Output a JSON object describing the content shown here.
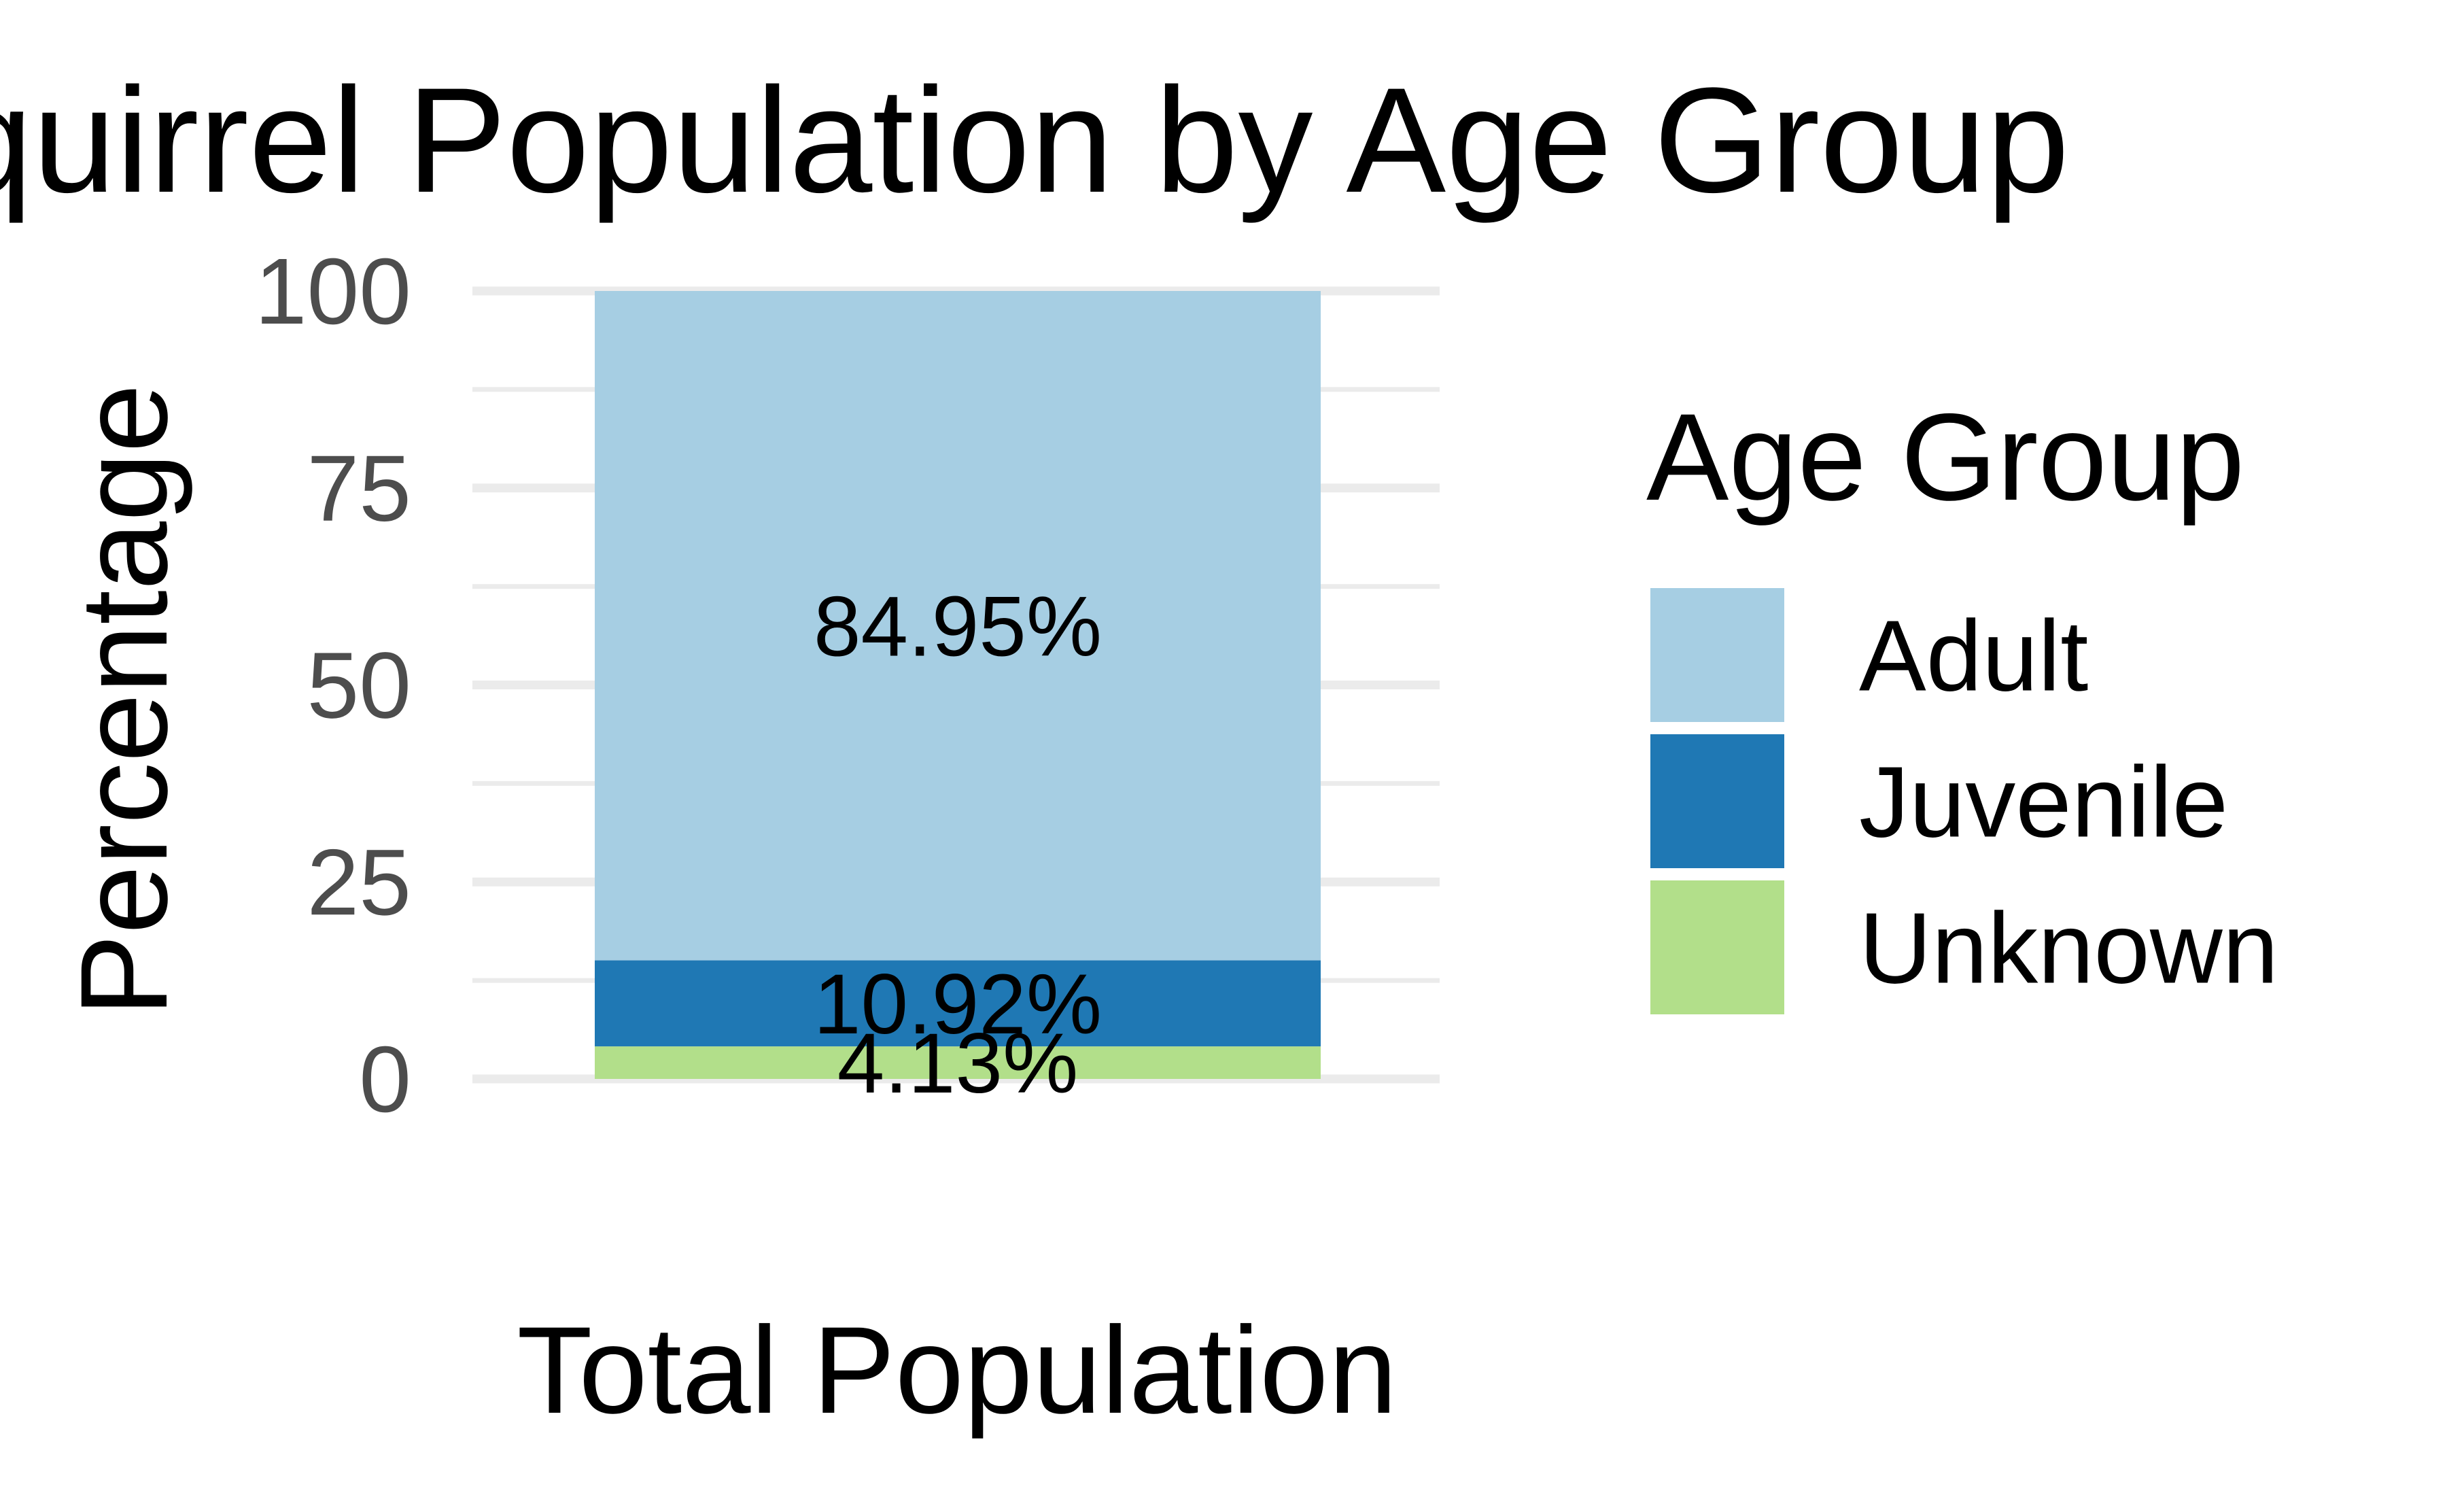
{
  "chart_data": {
    "type": "bar",
    "stacked": true,
    "title": "Park Squirrel Population by Age Group",
    "xlabel": "",
    "ylabel": "Percentage",
    "categories": [
      "Total Population"
    ],
    "ylim": [
      0,
      100
    ],
    "yticks": [
      0,
      25,
      50,
      75,
      100
    ],
    "grid": true,
    "legend": {
      "title": "Age Group",
      "placement": "right"
    },
    "series": [
      {
        "name": "Adult",
        "values": [
          84.95
        ],
        "label": "84.95%",
        "color": "#a6cee3"
      },
      {
        "name": "Juvenile",
        "values": [
          10.92
        ],
        "label": "10.92%",
        "color": "#1f78b4"
      },
      {
        "name": "Unknown",
        "values": [
          4.13
        ],
        "label": "4.13%",
        "color": "#b2df8a"
      }
    ],
    "stack_order_bottom_to_top": [
      "Unknown",
      "Juvenile",
      "Adult"
    ]
  }
}
